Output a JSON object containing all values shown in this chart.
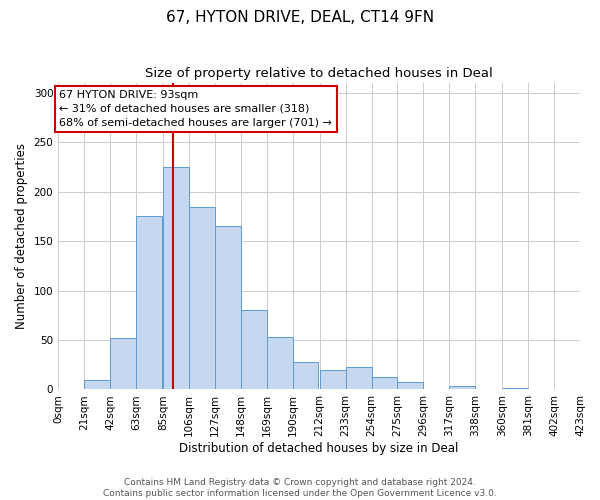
{
  "title": "67, HYTON DRIVE, DEAL, CT14 9FN",
  "subtitle": "Size of property relative to detached houses in Deal",
  "xlabel": "Distribution of detached houses by size in Deal",
  "ylabel": "Number of detached properties",
  "bar_color": "#c5d8f0",
  "bar_edge_color": "#5b9bd5",
  "bin_labels": [
    "0sqm",
    "21sqm",
    "42sqm",
    "63sqm",
    "85sqm",
    "106sqm",
    "127sqm",
    "148sqm",
    "169sqm",
    "190sqm",
    "212sqm",
    "233sqm",
    "254sqm",
    "275sqm",
    "296sqm",
    "317sqm",
    "338sqm",
    "360sqm",
    "381sqm",
    "402sqm",
    "423sqm"
  ],
  "bin_edges": [
    0,
    21,
    42,
    63,
    85,
    106,
    127,
    148,
    169,
    190,
    212,
    233,
    254,
    275,
    296,
    317,
    338,
    360,
    381,
    402,
    423
  ],
  "bar_heights": [
    0,
    10,
    52,
    175,
    225,
    185,
    165,
    80,
    53,
    28,
    20,
    23,
    13,
    8,
    0,
    3,
    0,
    1,
    0,
    0
  ],
  "ylim": [
    0,
    310
  ],
  "yticks": [
    0,
    50,
    100,
    150,
    200,
    250,
    300
  ],
  "vline_x": 93,
  "vline_color": "#cc0000",
  "annotation_title": "67 HYTON DRIVE: 93sqm",
  "annotation_line1": "← 31% of detached houses are smaller (318)",
  "annotation_line2": "68% of semi-detached houses are larger (701) →",
  "annotation_box_color": "#ffffff",
  "annotation_box_edge_color": "#cc0000",
  "footer_line1": "Contains HM Land Registry data © Crown copyright and database right 2024.",
  "footer_line2": "Contains public sector information licensed under the Open Government Licence v3.0.",
  "background_color": "#ffffff",
  "grid_color": "#cccccc",
  "title_fontsize": 11,
  "subtitle_fontsize": 9.5,
  "axis_label_fontsize": 8.5,
  "tick_fontsize": 7.5,
  "annotation_fontsize": 8,
  "footer_fontsize": 6.5
}
